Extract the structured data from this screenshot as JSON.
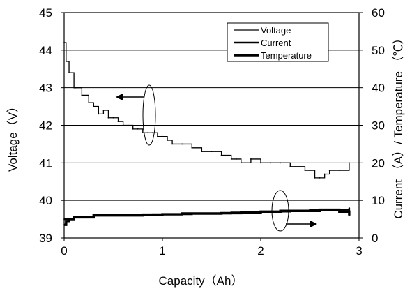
{
  "chart_data": {
    "type": "line",
    "xlabel": "Capacity（Ah）",
    "ylabel_left": "Voltage（V）",
    "ylabel_right": "Current （A）/ Temperature （℃）",
    "xlim": [
      0,
      3
    ],
    "ylim_left": [
      39,
      45
    ],
    "ylim_right": [
      0,
      60
    ],
    "x_ticks": [
      "0",
      "1",
      "2",
      "3"
    ],
    "y_left_ticks": [
      "39",
      "40",
      "41",
      "42",
      "43",
      "44",
      "45"
    ],
    "y_right_ticks": [
      "0",
      "10",
      "20",
      "30",
      "40",
      "50",
      "60"
    ],
    "grid": "horizontal",
    "legend_position": "top-right",
    "legend": [
      "Voltage",
      "Current",
      "Temperature"
    ],
    "series": [
      {
        "name": "Voltage",
        "axis": "left",
        "x": [
          0.0,
          0.02,
          0.05,
          0.1,
          0.12,
          0.18,
          0.25,
          0.3,
          0.35,
          0.4,
          0.45,
          0.5,
          0.55,
          0.6,
          0.65,
          0.7,
          0.75,
          0.8,
          0.85,
          0.9,
          0.95,
          1.0,
          1.05,
          1.1,
          1.2,
          1.3,
          1.4,
          1.5,
          1.6,
          1.7,
          1.75,
          1.8,
          1.9,
          2.0,
          2.1,
          2.2,
          2.3,
          2.4,
          2.45,
          2.5,
          2.55,
          2.6,
          2.65,
          2.7,
          2.8,
          2.9
        ],
        "y": [
          44.2,
          43.7,
          43.4,
          43.0,
          43.0,
          42.8,
          42.6,
          42.5,
          42.3,
          42.4,
          42.2,
          42.2,
          42.1,
          42.0,
          42.0,
          41.9,
          41.9,
          41.8,
          41.8,
          41.8,
          41.7,
          41.7,
          41.6,
          41.5,
          41.5,
          41.4,
          41.3,
          41.3,
          41.2,
          41.1,
          41.1,
          41.0,
          41.1,
          41.0,
          41.0,
          41.0,
          40.9,
          40.9,
          40.8,
          40.8,
          40.6,
          40.6,
          40.7,
          40.8,
          40.8,
          41.0
        ]
      },
      {
        "name": "Current",
        "axis": "right",
        "x": [
          0.0,
          0.1,
          0.2,
          0.3,
          0.5,
          0.7,
          0.9,
          1.1,
          1.3,
          1.5,
          1.7,
          1.9,
          2.1,
          2.3,
          2.5,
          2.7,
          2.9
        ],
        "y": [
          5.0,
          5.5,
          5.5,
          6.0,
          6.0,
          6.0,
          6.3,
          6.3,
          6.5,
          6.5,
          6.8,
          7.0,
          7.0,
          7.2,
          7.5,
          7.5,
          8.0
        ]
      },
      {
        "name": "Temperature",
        "axis": "right",
        "x": [
          0.0,
          0.02,
          0.05,
          0.1,
          0.15,
          0.2,
          0.3,
          0.4,
          0.6,
          0.8,
          1.0,
          1.2,
          1.4,
          1.6,
          1.8,
          2.0,
          2.2,
          2.4,
          2.6,
          2.8,
          2.9
        ],
        "y": [
          3.5,
          4.5,
          5.0,
          5.5,
          5.5,
          5.5,
          6.0,
          6.0,
          6.0,
          6.2,
          6.3,
          6.5,
          6.5,
          6.6,
          6.8,
          7.0,
          7.2,
          7.2,
          7.5,
          7.0,
          6.0
        ]
      }
    ]
  }
}
